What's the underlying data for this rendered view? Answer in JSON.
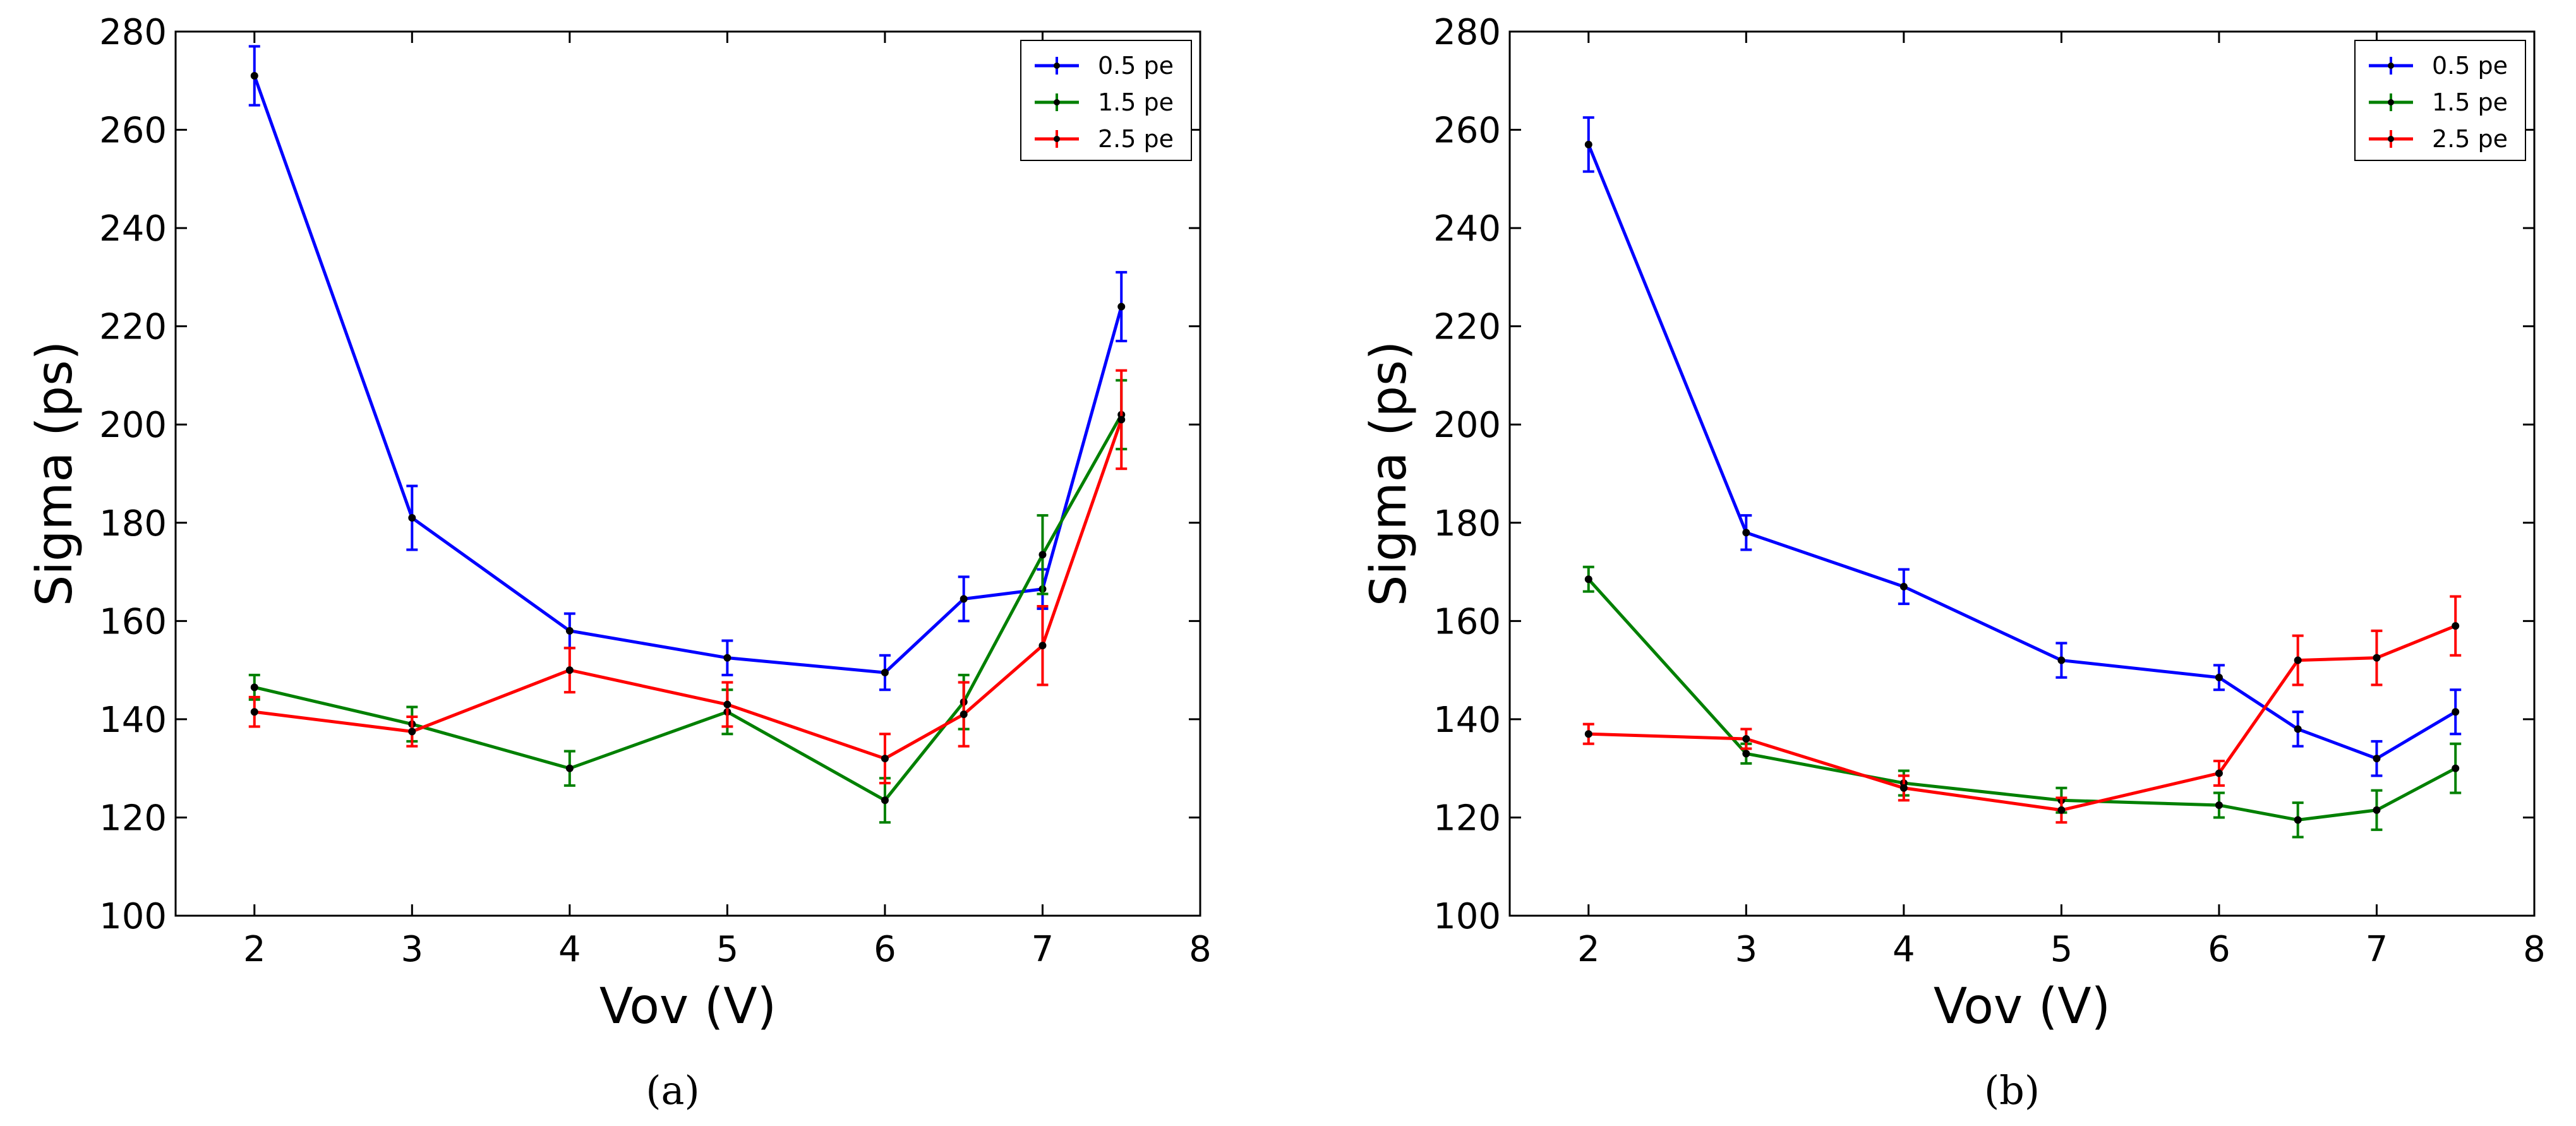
{
  "chart_data": [
    {
      "type": "line",
      "title": "",
      "caption": "(a)",
      "xlabel": "Vov (V)",
      "ylabel": "Sigma (ps)",
      "xlim": [
        1.5,
        8
      ],
      "ylim": [
        100,
        280
      ],
      "xticks": [
        2,
        3,
        4,
        5,
        6,
        7,
        8
      ],
      "yticks": [
        100,
        120,
        140,
        160,
        180,
        200,
        220,
        240,
        260,
        280
      ],
      "grid": false,
      "legend_position": "top-right",
      "x": [
        2,
        3,
        4,
        5,
        6,
        6.5,
        7,
        7.5
      ],
      "series": [
        {
          "name": "0.5 pe",
          "color": "#0000ff",
          "values": [
            271,
            181,
            158,
            152.5,
            149.5,
            164.5,
            166.5,
            224
          ],
          "errors": [
            6,
            6.5,
            3.5,
            3.5,
            3.5,
            4.5,
            4,
            7
          ]
        },
        {
          "name": "1.5 pe",
          "color": "#008000",
          "values": [
            146.5,
            139,
            130,
            141.5,
            123.5,
            143.5,
            173.5,
            202
          ],
          "errors": [
            2.5,
            3.5,
            3.5,
            4.5,
            4.5,
            5.5,
            8,
            7
          ]
        },
        {
          "name": "2.5 pe",
          "color": "#ff0000",
          "values": [
            141.5,
            137.5,
            150,
            143,
            132,
            141,
            155,
            201
          ],
          "errors": [
            3,
            3,
            4.5,
            4.5,
            5,
            6.5,
            8,
            10
          ]
        }
      ]
    },
    {
      "type": "line",
      "title": "",
      "caption": "(b)",
      "xlabel": "Vov (V)",
      "ylabel": "Sigma (ps)",
      "xlim": [
        1.5,
        8
      ],
      "ylim": [
        100,
        280
      ],
      "xticks": [
        2,
        3,
        4,
        5,
        6,
        7,
        8
      ],
      "yticks": [
        100,
        120,
        140,
        160,
        180,
        200,
        220,
        240,
        260,
        280
      ],
      "grid": false,
      "legend_position": "top-right",
      "x": [
        2,
        3,
        4,
        5,
        6,
        6.5,
        7,
        7.5
      ],
      "series": [
        {
          "name": "0.5 pe",
          "color": "#0000ff",
          "values": [
            257,
            178,
            167,
            152,
            148.5,
            138,
            132,
            141.5
          ],
          "errors": [
            5.5,
            3.5,
            3.5,
            3.5,
            2.5,
            3.5,
            3.5,
            4.5
          ]
        },
        {
          "name": "1.5 pe",
          "color": "#008000",
          "values": [
            168.5,
            133,
            127,
            123.5,
            122.5,
            119.5,
            121.5,
            130
          ],
          "errors": [
            2.5,
            2,
            2.5,
            2.5,
            2.5,
            3.5,
            4,
            5
          ]
        },
        {
          "name": "2.5 pe",
          "color": "#ff0000",
          "values": [
            137,
            136,
            126,
            121.5,
            129,
            152,
            152.5,
            159
          ],
          "errors": [
            2,
            2,
            2.5,
            2.5,
            2.5,
            5,
            5.5,
            6
          ]
        }
      ]
    }
  ]
}
